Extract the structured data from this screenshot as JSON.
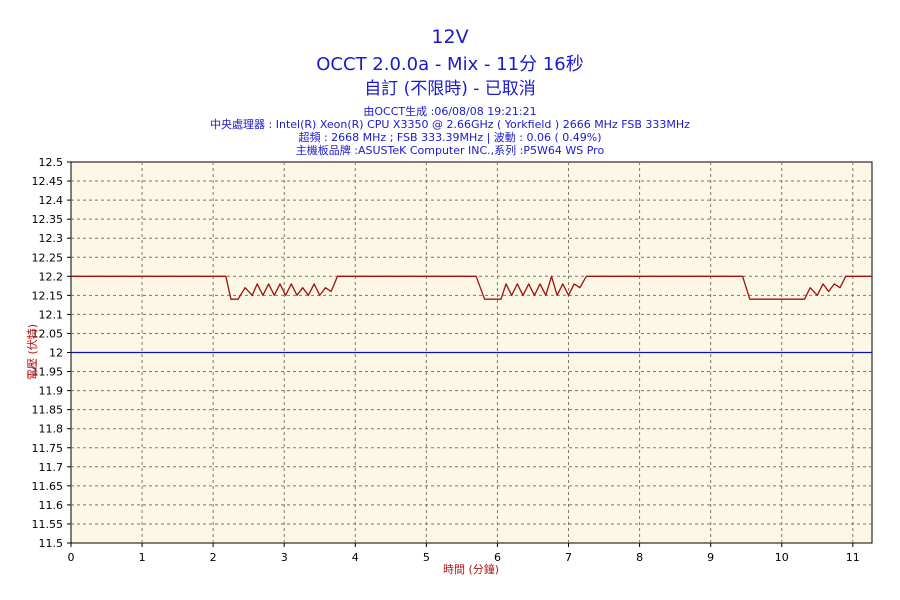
{
  "header": {
    "title": "12V",
    "subtitle": "OCCT 2.0.0a - Mix - 11分 16秒",
    "status": "自訂 (不限時) - 已取消",
    "info_lines": [
      "由OCCT生成 :06/08/08 19:21:21",
      "中央處理器 : Intel(R) Xeon(R) CPU X3350 @ 2.66GHz ( Yorkfield ) 2666 MHz FSB 333MHz",
      "超頻 : 2668 MHz ; FSB 333.39MHz | 波動 : 0.06 ( 0.49%)",
      "主機板品牌 :ASUSTeK Computer INC.,系列 :P5W64 WS Pro"
    ]
  },
  "colors": {
    "plot_background": "#fdf8e6",
    "grid": "#7a7a6a",
    "series_12v": "#a01010",
    "reference_line": "#1010c0",
    "axis_title": "#b01818",
    "title_text": "#1a1acc"
  },
  "chart_data": {
    "type": "line",
    "xlabel": "時間 (分鐘)",
    "ylabel": "電壓 (伏特)",
    "xlim": [
      0,
      11.27
    ],
    "ylim": [
      11.5,
      12.5
    ],
    "xticks": [
      "0",
      "1",
      "2",
      "3",
      "4",
      "5",
      "6",
      "7",
      "8",
      "9",
      "10",
      "11"
    ],
    "yticks": [
      "12.5",
      "12.45",
      "12.4",
      "12.35",
      "12.3",
      "12.25",
      "12.2",
      "12.15",
      "12.1",
      "12.05",
      "12",
      "11.95",
      "11.9",
      "11.85",
      "11.8",
      "11.75",
      "11.7",
      "11.65",
      "11.6",
      "11.55",
      "11.5"
    ],
    "grid": true,
    "series": [
      {
        "x": [
          0,
          2.18,
          2.25,
          2.35,
          2.45,
          2.55,
          2.62,
          2.7,
          2.78,
          2.86,
          2.94,
          3.02,
          3.1,
          3.18,
          3.26,
          3.34,
          3.42,
          3.5,
          3.58,
          3.66,
          3.75,
          5.7,
          5.82,
          6.05,
          6.12,
          6.2,
          6.28,
          6.36,
          6.44,
          6.52,
          6.6,
          6.68,
          6.76,
          6.84,
          6.92,
          7.0,
          7.08,
          7.16,
          7.25,
          9.45,
          9.55,
          10.32,
          10.4,
          10.5,
          10.58,
          10.66,
          10.74,
          10.82,
          10.9,
          11.27
        ],
        "values": [
          12.2,
          12.2,
          12.14,
          12.14,
          12.17,
          12.15,
          12.18,
          12.15,
          12.18,
          12.15,
          12.18,
          12.15,
          12.18,
          12.15,
          12.17,
          12.15,
          12.18,
          12.15,
          12.17,
          12.16,
          12.2,
          12.2,
          12.14,
          12.14,
          12.18,
          12.15,
          12.18,
          12.15,
          12.18,
          12.15,
          12.18,
          12.15,
          12.2,
          12.15,
          12.18,
          12.15,
          12.18,
          12.17,
          12.2,
          12.2,
          12.14,
          12.14,
          12.17,
          12.15,
          12.18,
          12.16,
          12.18,
          12.17,
          12.2,
          12.2
        ]
      },
      {
        "x": [
          0,
          11.27
        ],
        "values": [
          12.0,
          12.0
        ]
      }
    ]
  }
}
